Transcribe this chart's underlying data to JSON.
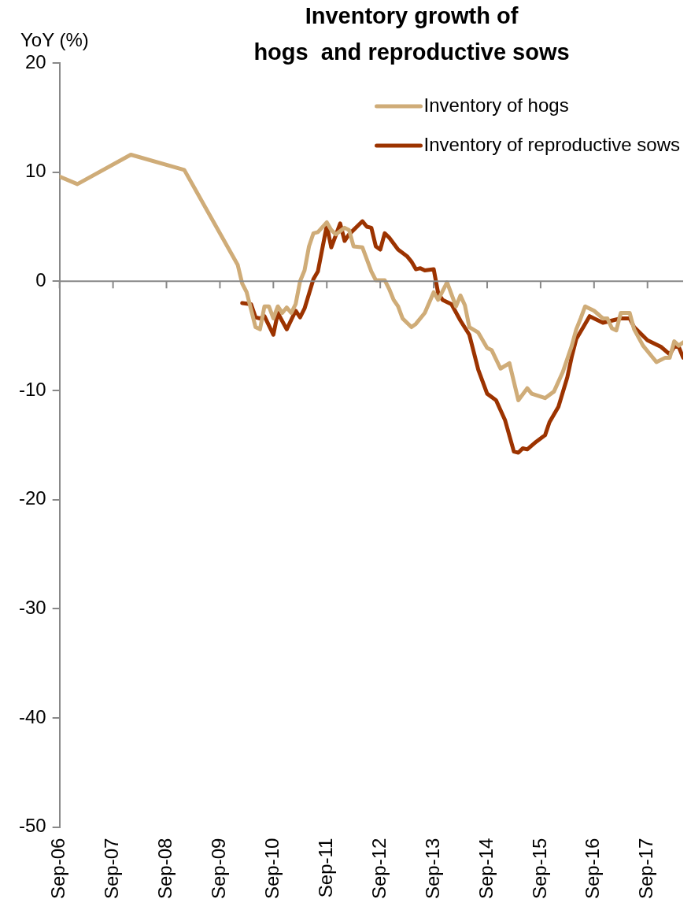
{
  "chart_data": {
    "type": "line",
    "title": "Inventory growth of\nhogs  and reproductive sows",
    "ylabel": "YoY (%)",
    "xlim": [
      "2006-09",
      "2018-05"
    ],
    "xticks": [
      {
        "value": "2006-09",
        "label": "Sep-06"
      },
      {
        "value": "2007-09",
        "label": "Sep-07"
      },
      {
        "value": "2008-09",
        "label": "Sep-08"
      },
      {
        "value": "2009-09",
        "label": "Sep-09"
      },
      {
        "value": "2010-09",
        "label": "Sep-10"
      },
      {
        "value": "2011-09",
        "label": "Sep-11"
      },
      {
        "value": "2012-09",
        "label": "Sep-12"
      },
      {
        "value": "2013-09",
        "label": "Sep-13"
      },
      {
        "value": "2014-09",
        "label": "Sep-14"
      },
      {
        "value": "2015-09",
        "label": "Sep-15"
      },
      {
        "value": "2016-09",
        "label": "Sep-16"
      },
      {
        "value": "2017-09",
        "label": "Sep-17"
      }
    ],
    "ylim": [
      -50,
      20
    ],
    "yticks": [
      -50,
      -40,
      -30,
      -20,
      -10,
      0,
      10,
      20
    ],
    "legend": "top right",
    "marker": "none",
    "line_style": "solid",
    "series": [
      {
        "name": "Inventory of hogs",
        "color": "#cfac78",
        "x": [
          "2006-09",
          "2007-01",
          "2008-01",
          "2009-01",
          "2010-01",
          "2010-02",
          "2010-03",
          "2010-05",
          "2010-06",
          "2010-07",
          "2010-08",
          "2010-09",
          "2010-10",
          "2010-11",
          "2010-12",
          "2011-01",
          "2011-02",
          "2011-03",
          "2011-04",
          "2011-05",
          "2011-06",
          "2011-07",
          "2011-09",
          "2011-10",
          "2011-11",
          "2012-01",
          "2012-02",
          "2012-03",
          "2012-05",
          "2012-06",
          "2012-07",
          "2012-08",
          "2012-10",
          "2012-11",
          "2012-12",
          "2013-01",
          "2013-02",
          "2013-04",
          "2013-05",
          "2013-07",
          "2013-09",
          "2013-10",
          "2013-12",
          "2014-02",
          "2014-03",
          "2014-04",
          "2014-05",
          "2014-07",
          "2014-09",
          "2014-10",
          "2014-12",
          "2015-02",
          "2015-04",
          "2015-06",
          "2015-07",
          "2015-10",
          "2015-12",
          "2016-02",
          "2016-04",
          "2016-05",
          "2016-06",
          "2016-07",
          "2016-09",
          "2016-11",
          "2016-12",
          "2017-01",
          "2017-02",
          "2017-03",
          "2017-05",
          "2017-06",
          "2017-08",
          "2017-10",
          "2017-11",
          "2018-01",
          "2018-02",
          "2018-03",
          "2018-04",
          "2018-05"
        ],
        "values": [
          9.6,
          8.9,
          11.6,
          10.2,
          1.5,
          -0.2,
          -1.0,
          -4.2,
          -4.4,
          -2.3,
          -2.3,
          -3.4,
          -2.3,
          -2.9,
          -2.4,
          -2.9,
          -2.1,
          0,
          1.0,
          3.2,
          4.4,
          4.5,
          5.4,
          4.7,
          4.3,
          4.9,
          4.7,
          3.2,
          3.1,
          2.0,
          0.9,
          0.1,
          0.1,
          -0.7,
          -1.7,
          -2.3,
          -3.4,
          -4.2,
          -3.9,
          -2.9,
          -1.0,
          -1.7,
          -0.1,
          -2.3,
          -1.3,
          -2.2,
          -4.2,
          -4.7,
          -6.1,
          -6.3,
          -8.0,
          -7.5,
          -10.9,
          -9.8,
          -10.3,
          -10.7,
          -10.1,
          -8.3,
          -5.9,
          -4.4,
          -3.4,
          -2.3,
          -2.7,
          -3.4,
          -3.4,
          -4.3,
          -4.5,
          -2.9,
          -2.9,
          -4.4,
          -5.9,
          -6.9,
          -7.4,
          -7.0,
          -7.0,
          -5.5,
          -5.9,
          -5.6
        ]
      },
      {
        "name": "Inventory of reproductive sows",
        "color": "#9c3300",
        "x": [
          "2010-02",
          "2010-04",
          "2010-05",
          "2010-06",
          "2010-07",
          "2010-09",
          "2010-10",
          "2010-12",
          "2011-02",
          "2011-03",
          "2011-04",
          "2011-06",
          "2011-07",
          "2011-09",
          "2011-10",
          "2011-12",
          "2012-01",
          "2012-02",
          "2012-03",
          "2012-05",
          "2012-06",
          "2012-07",
          "2012-08",
          "2012-09",
          "2012-10",
          "2012-11",
          "2013-01",
          "2013-03",
          "2013-04",
          "2013-05",
          "2013-06",
          "2013-07",
          "2013-09",
          "2013-10",
          "2013-11",
          "2014-01",
          "2014-03",
          "2014-05",
          "2014-06",
          "2014-07",
          "2014-09",
          "2014-11",
          "2015-01",
          "2015-03",
          "2015-04",
          "2015-05",
          "2015-06",
          "2015-08",
          "2015-10",
          "2015-11",
          "2016-01",
          "2016-03",
          "2016-04",
          "2016-05",
          "2016-07",
          "2016-08",
          "2016-11",
          "2017-01",
          "2017-03",
          "2017-05",
          "2017-06",
          "2017-09",
          "2017-12",
          "2018-02",
          "2018-03",
          "2018-04",
          "2018-05"
        ],
        "values": [
          -2.0,
          -2.1,
          -3.3,
          -3.4,
          -3.2,
          -4.9,
          -2.9,
          -4.4,
          -2.7,
          -3.3,
          -2.5,
          0.2,
          0.9,
          5.1,
          3.1,
          5.3,
          3.7,
          4.3,
          4.7,
          5.5,
          5.0,
          4.9,
          3.2,
          2.9,
          4.4,
          4.0,
          2.9,
          2.3,
          1.8,
          1.1,
          1.2,
          1.0,
          1.1,
          -1.1,
          -1.7,
          -2.1,
          -3.6,
          -4.9,
          -6.5,
          -8.1,
          -10.3,
          -10.9,
          -12.7,
          -15.6,
          -15.7,
          -15.3,
          -15.4,
          -14.7,
          -14.1,
          -12.9,
          -11.5,
          -8.8,
          -6.9,
          -5.3,
          -3.9,
          -3.2,
          -3.8,
          -3.6,
          -3.4,
          -3.4,
          -4.2,
          -5.4,
          -6.0,
          -6.7,
          -6.0,
          -6.0,
          -7.0
        ]
      }
    ]
  }
}
